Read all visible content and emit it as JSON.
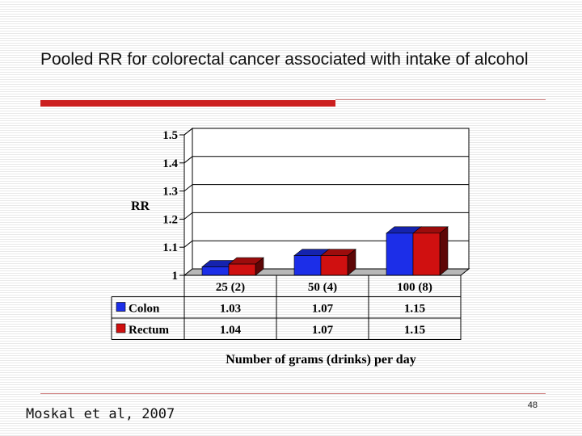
{
  "slide": {
    "title": "Pooled RR for colorectal cancer associated with intake of alcohol",
    "source": "Moskal et al, 2007",
    "page_number": "48"
  },
  "colors": {
    "accent_red": "#cc1f1f",
    "rule": "#d08080",
    "colon": "#1c2ee8",
    "rectum": "#d01010"
  },
  "chart_data": {
    "type": "bar",
    "title": "",
    "ylabel": "RR",
    "xlabel": "Number of grams (drinks) per day",
    "ylim": [
      1,
      1.5
    ],
    "yticks": [
      1.5,
      1.4,
      1.3,
      1.2,
      1.1,
      1
    ],
    "ytick_labels": [
      "1.5",
      "1.4",
      "1.3",
      "1.2",
      "1.1",
      "1"
    ],
    "categories": [
      "25 (2)",
      "50 (4)",
      "100 (8)"
    ],
    "series": [
      {
        "name": "Colon",
        "values": [
          1.03,
          1.07,
          1.15
        ],
        "labels": [
          "1.03",
          "1.07",
          "1.15"
        ],
        "color": "#1c2ee8"
      },
      {
        "name": "Rectum",
        "values": [
          1.04,
          1.07,
          1.15
        ],
        "labels": [
          "1.04",
          "1.07",
          "1.15"
        ],
        "color": "#d01010"
      }
    ],
    "legend": "data-table-left",
    "grid": true
  }
}
